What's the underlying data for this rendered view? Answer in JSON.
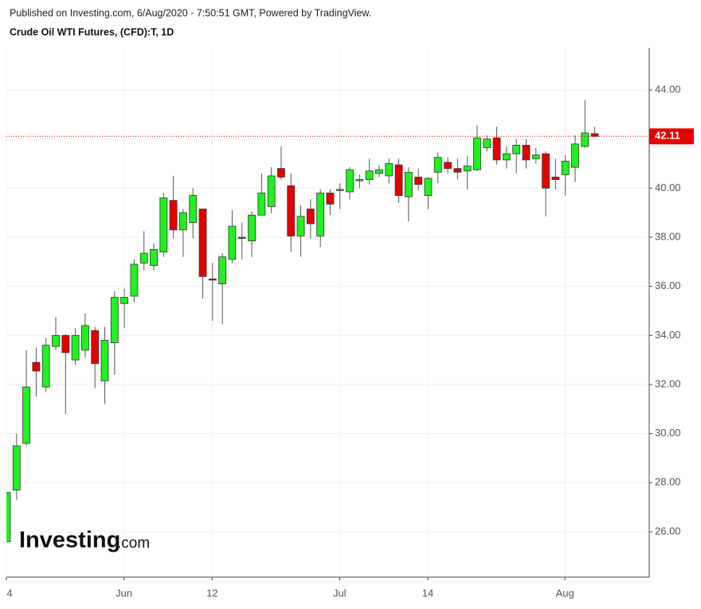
{
  "chart_data": {
    "type": "candlestick",
    "subtitle": "Published on Investing.com, 6/Aug/2020 - 7:50:51 GMT, Powered by TradingView.",
    "title": "Crude Oil WTI Futures, (CFD):T, 1D",
    "watermark": [
      "Investing",
      ".com"
    ],
    "categories": [
      null,
      null,
      null,
      null,
      null,
      null,
      null,
      null,
      null,
      null,
      null,
      null,
      null,
      null,
      null,
      null,
      null,
      null,
      null,
      null,
      null,
      null,
      null,
      null,
      null,
      null,
      null,
      null,
      null,
      null,
      null,
      null,
      null,
      null,
      null,
      null,
      null,
      null,
      null,
      null,
      null,
      null,
      null,
      null,
      null,
      null,
      null,
      null,
      null,
      null,
      null,
      null,
      null,
      null,
      null,
      null,
      null,
      null,
      null,
      null,
      null
    ],
    "open": [
      25.6,
      27.7,
      29.6,
      32.9,
      31.9,
      33.55,
      34.0,
      33.0,
      33.4,
      34.2,
      32.15,
      33.7,
      35.3,
      35.6,
      36.95,
      36.85,
      37.4,
      39.5,
      38.3,
      38.6,
      39.15,
      36.3,
      36.1,
      37.1,
      38.0,
      37.85,
      38.9,
      39.25,
      40.8,
      40.1,
      38.05,
      39.15,
      38.05,
      39.8,
      39.92,
      39.85,
      40.3,
      40.35,
      40.6,
      40.5,
      40.95,
      39.65,
      40.45,
      39.7,
      40.65,
      41.05,
      40.8,
      40.7,
      40.75,
      41.65,
      42.05,
      41.15,
      41.4,
      41.75,
      41.2,
      41.4,
      40.45,
      40.55,
      40.85,
      41.7,
      42.22
    ],
    "high": [
      27.6,
      30.0,
      33.4,
      33.5,
      33.9,
      34.75,
      34.05,
      34.3,
      34.9,
      34.35,
      34.35,
      35.8,
      35.9,
      37.1,
      38.25,
      37.75,
      39.8,
      40.5,
      39.15,
      40.0,
      39.15,
      36.95,
      37.35,
      39.1,
      38.6,
      39.05,
      40.6,
      40.85,
      41.7,
      40.6,
      39.3,
      39.55,
      39.95,
      39.95,
      40.2,
      40.85,
      40.55,
      41.2,
      40.95,
      41.2,
      41.2,
      40.85,
      40.8,
      40.45,
      41.45,
      41.25,
      41.2,
      41.3,
      42.55,
      42.15,
      42.5,
      41.7,
      42.0,
      42.0,
      41.65,
      41.5,
      41.2,
      41.35,
      42.15,
      43.6,
      42.5
    ],
    "low": [
      25.6,
      27.3,
      29.5,
      31.5,
      31.7,
      33.4,
      30.8,
      32.8,
      33.1,
      31.85,
      31.2,
      32.4,
      34.3,
      35.35,
      36.65,
      36.65,
      37.2,
      37.95,
      37.2,
      37.95,
      35.5,
      34.6,
      34.45,
      36.95,
      37.1,
      37.2,
      38.9,
      38.97,
      40.35,
      37.4,
      37.2,
      37.95,
      37.6,
      38.9,
      39.15,
      39.55,
      40.0,
      40.15,
      40.45,
      40.2,
      39.4,
      38.65,
      39.9,
      39.15,
      40.2,
      40.6,
      40.35,
      39.95,
      40.7,
      41.5,
      40.95,
      40.8,
      40.6,
      40.8,
      41.0,
      38.85,
      39.95,
      39.7,
      40.25,
      41.65,
      42.1
    ],
    "close": [
      27.6,
      29.5,
      31.9,
      32.55,
      33.6,
      34.0,
      33.3,
      34.0,
      34.4,
      32.85,
      33.8,
      35.55,
      35.55,
      36.9,
      37.35,
      37.5,
      39.6,
      38.3,
      39.0,
      39.7,
      36.4,
      36.3,
      37.2,
      38.45,
      38.0,
      38.9,
      39.8,
      40.5,
      40.45,
      38.05,
      38.85,
      38.55,
      39.8,
      39.35,
      39.95,
      40.75,
      40.35,
      40.7,
      40.75,
      41.0,
      39.7,
      40.65,
      40.15,
      40.4,
      41.25,
      40.8,
      40.65,
      40.9,
      42.05,
      42.0,
      41.15,
      41.4,
      41.75,
      41.15,
      41.35,
      40.0,
      40.35,
      41.1,
      41.8,
      42.25,
      42.11
    ],
    "up_color": "#1ff21f",
    "down_color": "#e60000",
    "last_price": 42.11,
    "last_price_color": "#e60000",
    "xlim": [
      0,
      65.6
    ],
    "xticks": [
      {
        "value": 0,
        "label": "4"
      },
      {
        "value": 12,
        "label": "Jun"
      },
      {
        "value": 21,
        "label": "12"
      },
      {
        "value": 34,
        "label": "Jul"
      },
      {
        "value": 43,
        "label": "14"
      },
      {
        "value": 57,
        "label": "Aug"
      }
    ],
    "ylim": [
      24.15,
      45.72
    ],
    "yticks": [
      {
        "value": 26,
        "label": "26.00"
      },
      {
        "value": 28,
        "label": "28.00"
      },
      {
        "value": 30,
        "label": "30.00"
      },
      {
        "value": 32,
        "label": "32.00"
      },
      {
        "value": 34,
        "label": "34.00"
      },
      {
        "value": 36,
        "label": "36.00"
      },
      {
        "value": 38,
        "label": "38.00"
      },
      {
        "value": 40,
        "label": "40.00"
      },
      {
        "value": 42,
        "label": "42.00"
      },
      {
        "value": 44,
        "label": "44.00"
      }
    ],
    "grid": true
  }
}
